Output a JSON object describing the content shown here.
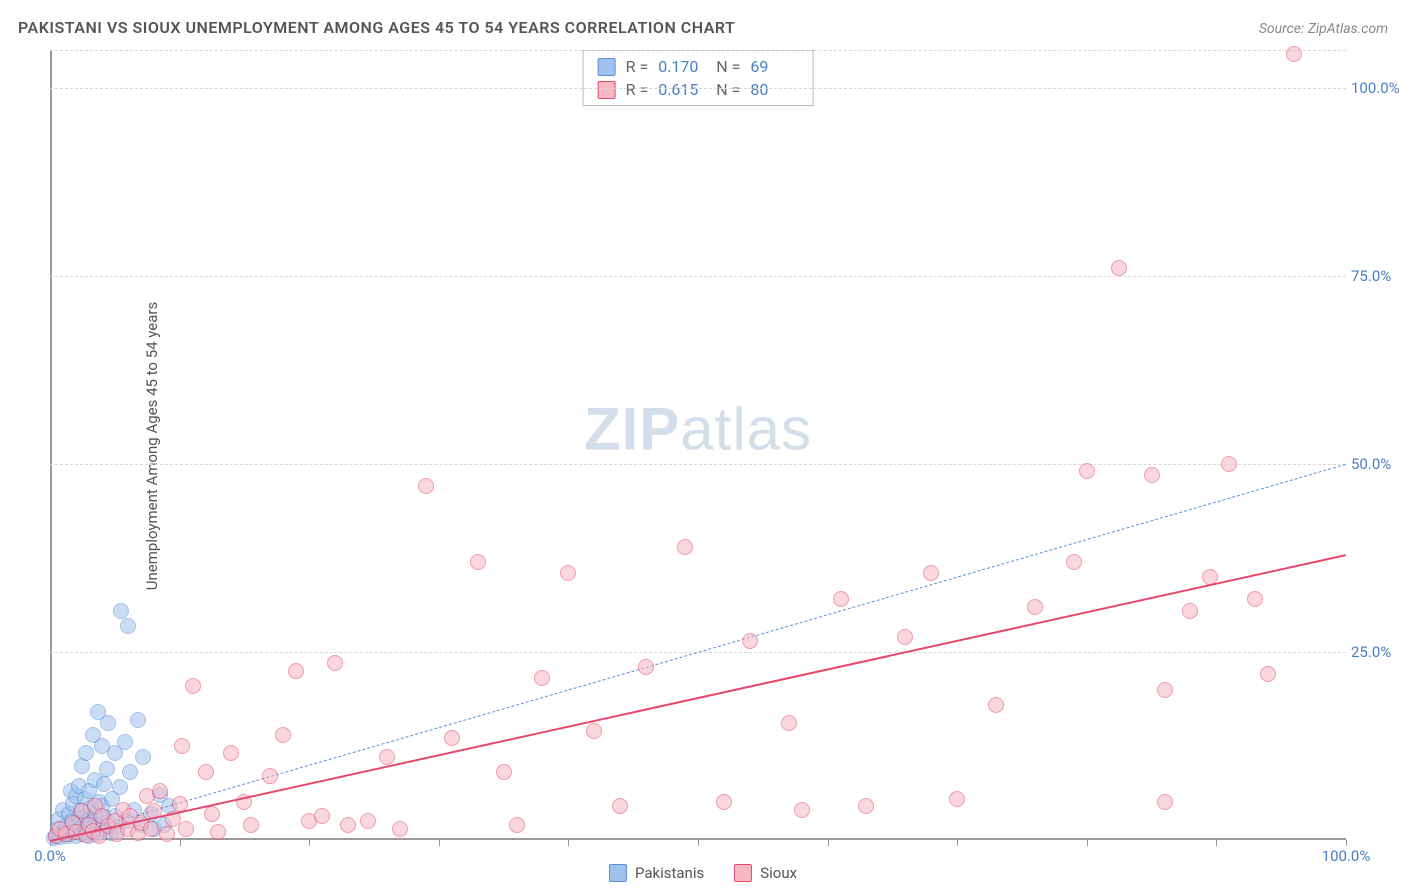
{
  "title": "PAKISTANI VS SIOUX UNEMPLOYMENT AMONG AGES 45 TO 54 YEARS CORRELATION CHART",
  "source_prefix": "Source:",
  "source_name": "ZipAtlas.com",
  "y_axis_label": "Unemployment Among Ages 45 to 54 years",
  "watermark_bold": "ZIP",
  "watermark_light": "atlas",
  "chart": {
    "type": "scatter",
    "xlim": [
      0,
      100
    ],
    "ylim": [
      0,
      105
    ],
    "x_ticks": [
      0,
      10,
      20,
      30,
      40,
      50,
      60,
      70,
      80,
      90,
      100
    ],
    "x_tick_labels": [
      {
        "pos": 0,
        "label": "0.0%"
      },
      {
        "pos": 100,
        "label": "100.0%"
      }
    ],
    "y_gridlines": [
      25,
      50,
      75,
      100,
      105
    ],
    "y_tick_labels": [
      {
        "pos": 25,
        "label": "25.0%"
      },
      {
        "pos": 50,
        "label": "50.0%"
      },
      {
        "pos": 75,
        "label": "75.0%"
      },
      {
        "pos": 100,
        "label": "100.0%"
      }
    ],
    "background_color": "#ffffff",
    "grid_color": "#d8d8d8",
    "axis_color": "#999999",
    "tick_label_color": "#4a7ec7",
    "title_color": "#555555",
    "title_fontsize": 16,
    "label_fontsize": 15,
    "point_radius": 8,
    "point_opacity": 0.55,
    "series": [
      {
        "name": "Pakistanis",
        "color_fill": "#9fc2ee",
        "color_stroke": "#5a8fd6",
        "R": "0.170",
        "N": "69",
        "trend": {
          "x1": 0,
          "y1": 0,
          "x2": 100,
          "y2": 50,
          "dash": "6 5",
          "width": 1.5,
          "color": "#5a8fd6"
        },
        "points": [
          [
            0.3,
            0.3
          ],
          [
            0.5,
            0.6
          ],
          [
            0.6,
            1.5
          ],
          [
            0.7,
            2.8
          ],
          [
            0.8,
            0.4
          ],
          [
            1.0,
            1.0
          ],
          [
            1.0,
            4.0
          ],
          [
            1.2,
            1.8
          ],
          [
            1.3,
            0.5
          ],
          [
            1.5,
            3.5
          ],
          [
            1.5,
            0.8
          ],
          [
            1.6,
            6.5
          ],
          [
            1.7,
            2.5
          ],
          [
            1.8,
            4.8
          ],
          [
            1.8,
            1.2
          ],
          [
            2.0,
            2.0
          ],
          [
            2.0,
            5.8
          ],
          [
            2.0,
            0.6
          ],
          [
            2.2,
            3.0
          ],
          [
            2.2,
            7.2
          ],
          [
            2.3,
            1.5
          ],
          [
            2.4,
            4.0
          ],
          [
            2.5,
            9.8
          ],
          [
            2.5,
            0.8
          ],
          [
            2.6,
            2.2
          ],
          [
            2.7,
            5.5
          ],
          [
            2.8,
            3.2
          ],
          [
            2.8,
            11.5
          ],
          [
            2.9,
            1.4
          ],
          [
            3.0,
            0.5
          ],
          [
            3.0,
            6.5
          ],
          [
            3.1,
            2.6
          ],
          [
            3.2,
            4.2
          ],
          [
            3.3,
            14.0
          ],
          [
            3.3,
            1.0
          ],
          [
            3.5,
            3.5
          ],
          [
            3.5,
            8.0
          ],
          [
            3.6,
            0.8
          ],
          [
            3.7,
            17.0
          ],
          [
            3.8,
            2.0
          ],
          [
            3.8,
            5.0
          ],
          [
            4.0,
            4.5
          ],
          [
            4.0,
            12.5
          ],
          [
            4.0,
            1.5
          ],
          [
            4.2,
            3.0
          ],
          [
            4.2,
            7.5
          ],
          [
            4.4,
            9.5
          ],
          [
            4.5,
            2.4
          ],
          [
            4.5,
            15.5
          ],
          [
            4.7,
            0.9
          ],
          [
            4.8,
            5.5
          ],
          [
            5.0,
            11.5
          ],
          [
            5.0,
            3.2
          ],
          [
            5.2,
            1.2
          ],
          [
            5.4,
            7.0
          ],
          [
            5.5,
            30.5
          ],
          [
            5.8,
            13.0
          ],
          [
            5.9,
            2.5
          ],
          [
            6.0,
            28.5
          ],
          [
            6.2,
            9.0
          ],
          [
            6.5,
            4.0
          ],
          [
            6.8,
            16.0
          ],
          [
            7.0,
            2.0
          ],
          [
            7.2,
            11.0
          ],
          [
            7.8,
            3.5
          ],
          [
            8.0,
            1.5
          ],
          [
            8.5,
            6.0
          ],
          [
            8.8,
            2.0
          ],
          [
            9.2,
            4.5
          ]
        ]
      },
      {
        "name": "Sioux",
        "color_fill": "#f6b8c5",
        "color_stroke": "#e6486d",
        "R": "0.615",
        "N": "80",
        "trend": {
          "x1": 0,
          "y1": 0,
          "x2": 100,
          "y2": 38,
          "dash": "none",
          "width": 2.5,
          "color": "#e6486d"
        },
        "points": [
          [
            0.5,
            0.5
          ],
          [
            0.8,
            1.5
          ],
          [
            1.2,
            0.8
          ],
          [
            1.8,
            2.2
          ],
          [
            2.0,
            1.0
          ],
          [
            2.5,
            3.8
          ],
          [
            2.8,
            0.7
          ],
          [
            3.0,
            2.0
          ],
          [
            3.3,
            1.2
          ],
          [
            3.5,
            4.5
          ],
          [
            3.8,
            0.5
          ],
          [
            4.0,
            3.2
          ],
          [
            4.5,
            1.8
          ],
          [
            5.0,
            2.5
          ],
          [
            5.2,
            0.8
          ],
          [
            5.6,
            4.0
          ],
          [
            6.0,
            1.5
          ],
          [
            6.2,
            3.2
          ],
          [
            6.8,
            0.9
          ],
          [
            7.0,
            2.2
          ],
          [
            7.5,
            5.8
          ],
          [
            7.8,
            1.4
          ],
          [
            8.0,
            3.8
          ],
          [
            8.5,
            6.5
          ],
          [
            9.0,
            0.8
          ],
          [
            9.5,
            2.8
          ],
          [
            10.0,
            4.8
          ],
          [
            10.2,
            12.5
          ],
          [
            10.5,
            1.5
          ],
          [
            11.0,
            20.5
          ],
          [
            12.0,
            9.0
          ],
          [
            12.5,
            3.5
          ],
          [
            13.0,
            1.0
          ],
          [
            14.0,
            11.5
          ],
          [
            15.0,
            5.0
          ],
          [
            15.5,
            2.0
          ],
          [
            17.0,
            8.5
          ],
          [
            18.0,
            14.0
          ],
          [
            19.0,
            22.5
          ],
          [
            20.0,
            2.5
          ],
          [
            21.0,
            3.2
          ],
          [
            22.0,
            23.5
          ],
          [
            23.0,
            2.0
          ],
          [
            24.5,
            2.5
          ],
          [
            26.0,
            11.0
          ],
          [
            27.0,
            1.5
          ],
          [
            29.0,
            47.0
          ],
          [
            31.0,
            13.5
          ],
          [
            33.0,
            37.0
          ],
          [
            35.0,
            9.0
          ],
          [
            36.0,
            2.0
          ],
          [
            38.0,
            21.5
          ],
          [
            40.0,
            35.5
          ],
          [
            42.0,
            14.5
          ],
          [
            44.0,
            4.5
          ],
          [
            46.0,
            23.0
          ],
          [
            49.0,
            39.0
          ],
          [
            52.0,
            5.0
          ],
          [
            54.0,
            26.5
          ],
          [
            57.0,
            15.5
          ],
          [
            58.0,
            4.0
          ],
          [
            61.0,
            32.0
          ],
          [
            63.0,
            4.5
          ],
          [
            66.0,
            27.0
          ],
          [
            68.0,
            35.5
          ],
          [
            70.0,
            5.5
          ],
          [
            73.0,
            18.0
          ],
          [
            76.0,
            31.0
          ],
          [
            79.0,
            37.0
          ],
          [
            80.0,
            49.0
          ],
          [
            82.5,
            76.0
          ],
          [
            85.0,
            48.5
          ],
          [
            86.0,
            20.0
          ],
          [
            86.0,
            5.0
          ],
          [
            88.0,
            30.5
          ],
          [
            89.5,
            35.0
          ],
          [
            91.0,
            50.0
          ],
          [
            93.0,
            32.0
          ],
          [
            94.0,
            22.0
          ],
          [
            96.0,
            104.5
          ]
        ]
      }
    ]
  },
  "legend": {
    "series1_label": "Pakistanis",
    "series2_label": "Sioux"
  }
}
